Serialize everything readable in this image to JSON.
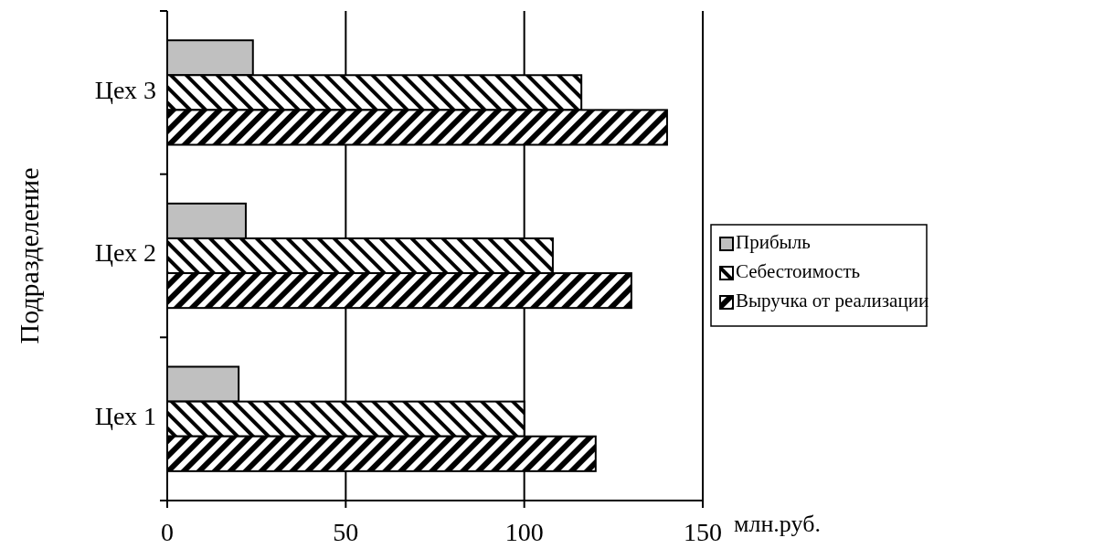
{
  "chart_data": {
    "type": "bar",
    "orientation": "horizontal",
    "categories": [
      "Цех 3",
      "Цех 2",
      "Цех 1"
    ],
    "series": [
      {
        "name": "Прибыль",
        "color": "#c0c0c0",
        "values": [
          24,
          22,
          20
        ]
      },
      {
        "name": "Себестоимость",
        "color": "#000000",
        "values": [
          116,
          108,
          100
        ]
      },
      {
        "name": "Выручка от реализации",
        "color": "#000000",
        "values": [
          140,
          130,
          120
        ]
      }
    ],
    "xlim": [
      0,
      150
    ],
    "xticks": [
      0,
      50,
      100,
      150
    ],
    "grid": "x",
    "legend": "right",
    "xlabel": "млн.руб.",
    "ylabel": "Подразделение"
  }
}
